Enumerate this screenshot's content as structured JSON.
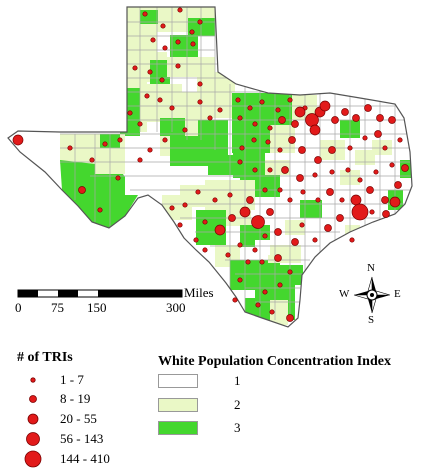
{
  "colors": {
    "class1": "#ffffff",
    "class2": "#eaf8c6",
    "class3": "#44d72e",
    "border": "#a8a8a8",
    "outline": "#555555",
    "tri_fill": "#e21a1a",
    "tri_stroke": "#7a0000"
  },
  "scale": {
    "unit": "Miles",
    "ticks": [
      "0",
      "75",
      "150",
      "300"
    ]
  },
  "compass": {
    "n": "N",
    "s": "S",
    "e": "E",
    "w": "W"
  },
  "tri_legend": {
    "title": "# of TRIs",
    "items": [
      "1 - 7",
      "8 - 19",
      "20 - 55",
      "56 - 143",
      "144 - 410"
    ]
  },
  "index_legend": {
    "title": "White Population Concentration Index",
    "items": [
      "1",
      "2",
      "3"
    ]
  }
}
